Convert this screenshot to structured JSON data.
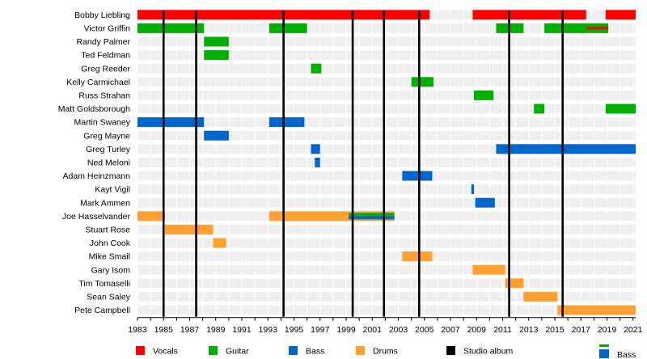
{
  "chart_data": {
    "type": "timeline",
    "title": "",
    "x_axis": {
      "min": 1983,
      "max": 2021.2,
      "ticks": [
        1983,
        1985,
        1987,
        1989,
        1991,
        1993,
        1995,
        1997,
        1999,
        2001,
        2003,
        2005,
        2007,
        2009,
        2011,
        2013,
        2015,
        2017,
        2019,
        2021
      ]
    },
    "roles": {
      "Vocals": "#ff0000",
      "Guitar": "#00b000",
      "Bass": "#0066cc",
      "Drums": "#ffa030"
    },
    "legend": [
      {
        "label": "Vocals",
        "color": "#ff0000"
      },
      {
        "label": "Guitar",
        "color": "#00b000"
      },
      {
        "label": "Bass",
        "color": "#0066cc"
      },
      {
        "label": "Drums",
        "color": "#ffa030"
      },
      {
        "label": "Studio album",
        "color": "#000000"
      }
    ],
    "studio_albums": [
      1985.0,
      1987.5,
      1994.2,
      1999.5,
      2001.9,
      2004.6,
      2011.5,
      2015.6
    ],
    "members": [
      {
        "name": "Bobby Liebling",
        "bars": [
          {
            "role": "Vocals",
            "start": 1983.0,
            "end": 2005.4
          },
          {
            "role": "Vocals",
            "start": 2008.7,
            "end": 2017.4
          },
          {
            "role": "Vocals",
            "start": 2018.9,
            "end": 2021.2
          }
        ]
      },
      {
        "name": "Victor Griffin",
        "bars": [
          {
            "role": "Guitar",
            "start": 1983.0,
            "end": 1988.1
          },
          {
            "role": "Guitar",
            "start": 1993.1,
            "end": 1996.0
          },
          {
            "role": "Guitar",
            "start": 2010.5,
            "end": 2012.6
          },
          {
            "role": "Guitar",
            "start": 2014.2,
            "end": 2019.1
          }
        ],
        "overlays": [
          {
            "role": "Vocals",
            "start": 2017.4,
            "end": 2019.1
          }
        ]
      },
      {
        "name": "Randy Palmer",
        "bars": [
          {
            "role": "Guitar",
            "start": 1988.1,
            "end": 1990.0
          }
        ]
      },
      {
        "name": "Ted Feldman",
        "bars": [
          {
            "role": "Guitar",
            "start": 1988.1,
            "end": 1990.0
          }
        ]
      },
      {
        "name": "Greg Reeder",
        "bars": [
          {
            "role": "Guitar",
            "start": 1996.3,
            "end": 1997.1
          }
        ]
      },
      {
        "name": "Kelly Carmichael",
        "bars": [
          {
            "role": "Guitar",
            "start": 2004.0,
            "end": 2005.7
          }
        ]
      },
      {
        "name": "Russ Strahan",
        "bars": [
          {
            "role": "Guitar",
            "start": 2008.8,
            "end": 2010.3
          }
        ]
      },
      {
        "name": "Matt Goldsborough",
        "bars": [
          {
            "role": "Guitar",
            "start": 2013.4,
            "end": 2014.2
          },
          {
            "role": "Guitar",
            "start": 2018.9,
            "end": 2021.2
          }
        ]
      },
      {
        "name": "Martin Swaney",
        "bars": [
          {
            "role": "Bass",
            "start": 1983.0,
            "end": 1988.1
          },
          {
            "role": "Bass",
            "start": 1993.1,
            "end": 1995.8
          }
        ]
      },
      {
        "name": "Greg Mayne",
        "bars": [
          {
            "role": "Bass",
            "start": 1988.1,
            "end": 1990.0
          }
        ]
      },
      {
        "name": "Greg Turley",
        "bars": [
          {
            "role": "Bass",
            "start": 1996.3,
            "end": 1997.0
          },
          {
            "role": "Bass",
            "start": 2010.5,
            "end": 2021.2
          }
        ]
      },
      {
        "name": "Ned Meloni",
        "bars": [
          {
            "role": "Bass",
            "start": 1996.6,
            "end": 1997.0
          }
        ]
      },
      {
        "name": "Adam Heinzmann",
        "bars": [
          {
            "role": "Bass",
            "start": 2003.3,
            "end": 2005.6
          }
        ]
      },
      {
        "name": "Kayt Vigil",
        "bars": [
          {
            "role": "Bass",
            "start": 2008.6,
            "end": 2008.8
          }
        ]
      },
      {
        "name": "Mark Ammen",
        "bars": [
          {
            "role": "Bass",
            "start": 2008.9,
            "end": 2010.4
          }
        ]
      },
      {
        "name": "Joe Hasselvander",
        "bars": [
          {
            "role": "Drums",
            "start": 1983.0,
            "end": 1985.1
          },
          {
            "role": "Drums",
            "start": 1993.1,
            "end": 2002.7
          }
        ],
        "overlays": [
          {
            "role": "Guitar",
            "start": 1999.2,
            "end": 2002.7
          },
          {
            "role": "Bass",
            "start": 1999.2,
            "end": 2002.7
          }
        ]
      },
      {
        "name": "Stuart Rose",
        "bars": [
          {
            "role": "Drums",
            "start": 1985.1,
            "end": 1988.8
          }
        ]
      },
      {
        "name": "John Cook",
        "bars": [
          {
            "role": "Drums",
            "start": 1988.8,
            "end": 1989.8
          }
        ]
      },
      {
        "name": "Mike Smail",
        "bars": [
          {
            "role": "Drums",
            "start": 2003.3,
            "end": 2005.6
          }
        ]
      },
      {
        "name": "Gary Isom",
        "bars": [
          {
            "role": "Drums",
            "start": 2008.7,
            "end": 2011.2
          }
        ]
      },
      {
        "name": "Tim Tomaselli",
        "bars": [
          {
            "role": "Drums",
            "start": 2011.2,
            "end": 2012.6
          }
        ]
      },
      {
        "name": "Sean Saley",
        "bars": [
          {
            "role": "Drums",
            "start": 2012.6,
            "end": 2015.2
          }
        ]
      },
      {
        "name": "Pete Campbell",
        "bars": [
          {
            "role": "Drums",
            "start": 2015.2,
            "end": 2021.2
          }
        ]
      }
    ],
    "overlay_legend": {
      "label": "Bass",
      "top": "Guitar",
      "bottom": "Bass"
    },
    "grid": true
  }
}
